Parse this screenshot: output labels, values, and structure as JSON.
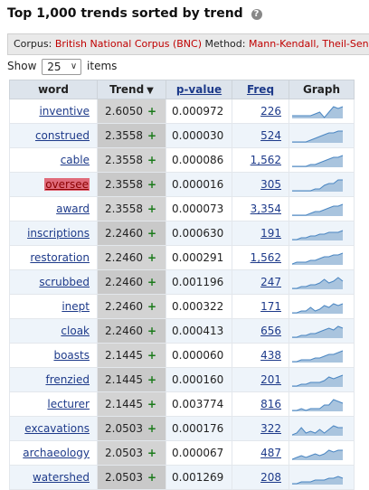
{
  "title": "Top 1,000 trends sorted by trend",
  "help_icon": "?",
  "corpus": {
    "label": "Corpus:",
    "value": "British National Corpus (BNC)",
    "method_label": "Method:",
    "method_value": "Mann-Kendall, Theil-Sen"
  },
  "show": {
    "label": "Show",
    "value": "25",
    "suffix": "items"
  },
  "columns": {
    "word": "word",
    "trend": "Trend",
    "pvalue": "p-value",
    "freq": "Freq",
    "graph": "Graph"
  },
  "rows": [
    {
      "word": "inventive",
      "trend": "2.6050",
      "sign": "+",
      "pvalue": "0.000972",
      "freq": "226",
      "spark": [
        6,
        6,
        6,
        6,
        6,
        5,
        4,
        7,
        4,
        1,
        2,
        1
      ]
    },
    {
      "word": "construed",
      "trend": "2.3558",
      "sign": "+",
      "pvalue": "0.000030",
      "freq": "524",
      "spark": [
        7,
        7,
        7,
        7,
        6,
        5,
        4,
        3,
        2,
        2,
        1,
        1
      ]
    },
    {
      "word": "cable",
      "trend": "2.3558",
      "sign": "+",
      "pvalue": "0.000086",
      "freq": "1,562",
      "spark": [
        7,
        7,
        7,
        7,
        6,
        6,
        5,
        4,
        3,
        2,
        2,
        1
      ]
    },
    {
      "word": "oversee",
      "trend": "2.3558",
      "sign": "+",
      "pvalue": "0.000016",
      "freq": "305",
      "highlight": true,
      "spark": [
        7,
        7,
        7,
        7,
        7,
        6,
        6,
        4,
        3,
        3,
        1,
        1
      ]
    },
    {
      "word": "award",
      "trend": "2.3558",
      "sign": "+",
      "pvalue": "0.000073",
      "freq": "3,354",
      "spark": [
        7,
        7,
        7,
        7,
        6,
        5,
        5,
        4,
        3,
        2,
        2,
        1
      ]
    },
    {
      "word": "inscriptions",
      "trend": "2.2460",
      "sign": "+",
      "pvalue": "0.000630",
      "freq": "191",
      "spark": [
        7,
        7,
        6,
        6,
        5,
        5,
        4,
        4,
        3,
        3,
        3,
        2
      ]
    },
    {
      "word": "restoration",
      "trend": "2.2460",
      "sign": "+",
      "pvalue": "0.000291",
      "freq": "1,562",
      "spark": [
        7,
        6,
        6,
        6,
        5,
        5,
        4,
        3,
        3,
        2,
        2,
        1
      ]
    },
    {
      "word": "scrubbed",
      "trend": "2.2460",
      "sign": "+",
      "pvalue": "0.001196",
      "freq": "247",
      "spark": [
        7,
        7,
        6,
        6,
        5,
        5,
        4,
        2,
        4,
        3,
        1,
        3
      ]
    },
    {
      "word": "inept",
      "trend": "2.2460",
      "sign": "+",
      "pvalue": "0.000322",
      "freq": "171",
      "spark": [
        7,
        7,
        6,
        6,
        4,
        6,
        5,
        3,
        4,
        2,
        3,
        2
      ]
    },
    {
      "word": "cloak",
      "trend": "2.2460",
      "sign": "+",
      "pvalue": "0.000413",
      "freq": "656",
      "spark": [
        7,
        7,
        6,
        6,
        5,
        5,
        4,
        3,
        2,
        3,
        1,
        2
      ]
    },
    {
      "word": "boasts",
      "trend": "2.1445",
      "sign": "+",
      "pvalue": "0.000060",
      "freq": "438",
      "spark": [
        7,
        7,
        6,
        6,
        6,
        5,
        5,
        4,
        3,
        3,
        2,
        1
      ]
    },
    {
      "word": "frenzied",
      "trend": "2.1445",
      "sign": "+",
      "pvalue": "0.000160",
      "freq": "201",
      "spark": [
        7,
        7,
        6,
        6,
        5,
        5,
        5,
        4,
        2,
        3,
        2,
        1
      ]
    },
    {
      "word": "lecturer",
      "trend": "2.1445",
      "sign": "+",
      "pvalue": "0.003774",
      "freq": "816",
      "spark": [
        7,
        7,
        6,
        7,
        6,
        6,
        6,
        4,
        4,
        1,
        2,
        3
      ]
    },
    {
      "word": "excavations",
      "trend": "2.0503",
      "sign": "+",
      "pvalue": "0.000176",
      "freq": "322",
      "spark": [
        7,
        6,
        3,
        6,
        5,
        6,
        4,
        6,
        4,
        2,
        3,
        3
      ]
    },
    {
      "word": "archaeology",
      "trend": "2.0503",
      "sign": "+",
      "pvalue": "0.000067",
      "freq": "487",
      "spark": [
        7,
        6,
        5,
        6,
        5,
        4,
        5,
        4,
        2,
        3,
        2,
        2
      ]
    },
    {
      "word": "watershed",
      "trend": "2.0503",
      "sign": "+",
      "pvalue": "0.001269",
      "freq": "208",
      "spark": [
        7,
        7,
        6,
        6,
        6,
        5,
        5,
        5,
        4,
        4,
        3,
        4
      ]
    }
  ],
  "colors": {
    "link": "#1d3a8a",
    "red": "#c00000",
    "plus": "#1a7a1a",
    "spark_fill": "#a9c4de",
    "spark_line": "#4a86c2",
    "highlight": "#e06b7a"
  }
}
